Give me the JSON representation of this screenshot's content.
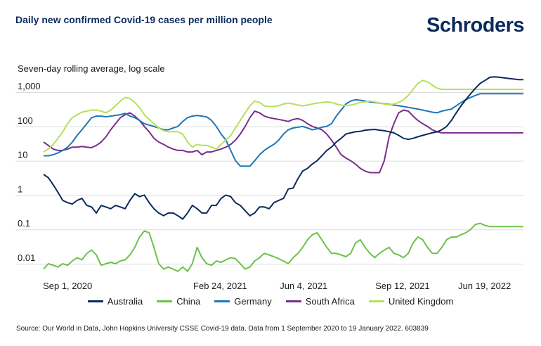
{
  "header": {
    "title": "Daily new confirmed Covid-19 cases per million people",
    "brand": "Schroders"
  },
  "footer": {
    "source": "Source: Our World in Data, John Hopkins University CSSE Covid-19 data. Data from 1 September 2020 to 19 January 2022. 603839"
  },
  "chart_data": {
    "type": "line",
    "title": "Daily new confirmed Covid-19 cases per million people",
    "subtitle": "Seven-day rolling average, log scale",
    "xlabel": "",
    "ylabel": "",
    "yscale": "log",
    "ylim": [
      0.005,
      2500
    ],
    "xlim": [
      0,
      100
    ],
    "grid": true,
    "legend_position": "bottom",
    "yticks": [
      {
        "value": 1000,
        "label": "1,000"
      },
      {
        "value": 100,
        "label": "100"
      },
      {
        "value": 10,
        "label": "10"
      },
      {
        "value": 1,
        "label": "1"
      },
      {
        "value": 0.1,
        "label": "0.1"
      },
      {
        "value": 0.01,
        "label": "0.01"
      }
    ],
    "xticks": [
      {
        "value": 5,
        "label": "Sep 1, 2020"
      },
      {
        "value": 36.8,
        "label": "Feb 24, 2021"
      },
      {
        "value": 54.2,
        "label": "Jun 4, 2021"
      },
      {
        "value": 74.8,
        "label": "Sep 12, 2021"
      },
      {
        "value": 91.9,
        "label": "Jun 19, 2022"
      }
    ],
    "series": [
      {
        "name": "Australia",
        "color": "#0b2a5c",
        "x": [
          0,
          1,
          2,
          3,
          4,
          5,
          6,
          7,
          8,
          9,
          10,
          11,
          12,
          13,
          14,
          15,
          16,
          17,
          18,
          19,
          20,
          21,
          22,
          23,
          24,
          25,
          26,
          27,
          28,
          29,
          30,
          31,
          32,
          33,
          34,
          35,
          36,
          37,
          38,
          39,
          40,
          41,
          42,
          43,
          44,
          45,
          46,
          47,
          48,
          49,
          50,
          51,
          52,
          53,
          54,
          55,
          56,
          57,
          58,
          59,
          60,
          61,
          62,
          63,
          64,
          65,
          66,
          67,
          68,
          69,
          70,
          71,
          72,
          73,
          74,
          75,
          76,
          77,
          78,
          79,
          80,
          81,
          82,
          83,
          84,
          85,
          86,
          87,
          88,
          89,
          90,
          91,
          92,
          93,
          94,
          95,
          96,
          97,
          98,
          99,
          100
        ],
        "values": [
          4,
          3.2,
          2,
          1.2,
          0.7,
          0.6,
          0.55,
          0.7,
          0.8,
          0.5,
          0.45,
          0.3,
          0.5,
          0.45,
          0.4,
          0.5,
          0.45,
          0.4,
          0.7,
          1.1,
          0.9,
          1.0,
          0.6,
          0.4,
          0.3,
          0.25,
          0.3,
          0.3,
          0.25,
          0.2,
          0.3,
          0.5,
          0.4,
          0.3,
          0.3,
          0.5,
          0.5,
          0.8,
          1.0,
          0.9,
          0.6,
          0.5,
          0.35,
          0.25,
          0.3,
          0.45,
          0.45,
          0.4,
          0.6,
          0.7,
          0.8,
          1.5,
          1.6,
          3,
          5,
          6,
          8,
          10,
          14,
          20,
          25,
          35,
          45,
          60,
          65,
          70,
          72,
          78,
          80,
          82,
          78,
          75,
          70,
          65,
          55,
          45,
          42,
          45,
          50,
          55,
          60,
          65,
          70,
          80,
          100,
          150,
          250,
          400,
          600,
          900,
          1300,
          1800,
          2200,
          2700,
          2800,
          2700,
          2600,
          2500,
          2400,
          2300,
          2300
        ]
      },
      {
        "name": "China",
        "color": "#6cc24a",
        "x": [
          0,
          1,
          2,
          3,
          4,
          5,
          6,
          7,
          8,
          9,
          10,
          11,
          12,
          13,
          14,
          15,
          16,
          17,
          18,
          19,
          20,
          21,
          22,
          23,
          24,
          25,
          26,
          27,
          28,
          29,
          30,
          31,
          32,
          33,
          34,
          35,
          36,
          37,
          38,
          39,
          40,
          41,
          42,
          43,
          44,
          45,
          46,
          47,
          48,
          49,
          50,
          51,
          52,
          53,
          54,
          55,
          56,
          57,
          58,
          59,
          60,
          61,
          62,
          63,
          64,
          65,
          66,
          67,
          68,
          69,
          70,
          71,
          72,
          73,
          74,
          75,
          76,
          77,
          78,
          79,
          80,
          81,
          82,
          83,
          84,
          85,
          86,
          87,
          88,
          89,
          90,
          91,
          92,
          93,
          94,
          95,
          96,
          97,
          98,
          99,
          100
        ],
        "values": [
          0.007,
          0.01,
          0.009,
          0.008,
          0.01,
          0.009,
          0.012,
          0.015,
          0.013,
          0.02,
          0.025,
          0.018,
          0.009,
          0.01,
          0.011,
          0.01,
          0.012,
          0.013,
          0.018,
          0.03,
          0.06,
          0.09,
          0.08,
          0.03,
          0.01,
          0.007,
          0.008,
          0.007,
          0.006,
          0.008,
          0.006,
          0.01,
          0.03,
          0.015,
          0.01,
          0.009,
          0.012,
          0.011,
          0.013,
          0.015,
          0.014,
          0.01,
          0.007,
          0.008,
          0.012,
          0.015,
          0.02,
          0.018,
          0.016,
          0.014,
          0.012,
          0.01,
          0.015,
          0.02,
          0.03,
          0.05,
          0.07,
          0.08,
          0.05,
          0.03,
          0.02,
          0.02,
          0.018,
          0.016,
          0.02,
          0.04,
          0.05,
          0.03,
          0.02,
          0.015,
          0.02,
          0.025,
          0.03,
          0.02,
          0.018,
          0.015,
          0.02,
          0.04,
          0.06,
          0.05,
          0.03,
          0.02,
          0.02,
          0.03,
          0.05,
          0.06,
          0.06,
          0.07,
          0.08,
          0.1,
          0.14,
          0.15,
          0.13,
          0.12,
          0.12,
          0.12,
          0.12,
          0.12,
          0.12,
          0.12,
          0.12
        ]
      },
      {
        "name": "Germany",
        "color": "#1f77b4",
        "x": [
          0,
          1,
          2,
          3,
          4,
          5,
          6,
          7,
          8,
          9,
          10,
          11,
          12,
          13,
          14,
          15,
          16,
          17,
          18,
          19,
          20,
          21,
          22,
          23,
          24,
          25,
          26,
          27,
          28,
          29,
          30,
          31,
          32,
          33,
          34,
          35,
          36,
          37,
          38,
          39,
          40,
          41,
          42,
          43,
          44,
          45,
          46,
          47,
          48,
          49,
          50,
          51,
          52,
          53,
          54,
          55,
          56,
          57,
          58,
          59,
          60,
          61,
          62,
          63,
          64,
          65,
          66,
          67,
          68,
          69,
          70,
          71,
          72,
          73,
          74,
          75,
          76,
          77,
          78,
          79,
          80,
          81,
          82,
          83,
          84,
          85,
          86,
          87,
          88,
          89,
          90,
          91,
          92,
          93,
          94,
          95,
          96,
          97,
          98,
          99,
          100
        ],
        "values": [
          14,
          14,
          15,
          17,
          20,
          25,
          35,
          55,
          80,
          120,
          180,
          200,
          200,
          190,
          200,
          210,
          220,
          240,
          200,
          180,
          150,
          120,
          110,
          100,
          90,
          80,
          80,
          90,
          100,
          140,
          180,
          200,
          210,
          200,
          190,
          150,
          100,
          60,
          40,
          20,
          10,
          7,
          7,
          7,
          10,
          15,
          20,
          25,
          30,
          40,
          60,
          80,
          90,
          95,
          100,
          90,
          80,
          85,
          95,
          100,
          120,
          200,
          300,
          450,
          550,
          600,
          580,
          550,
          520,
          500,
          480,
          460,
          440,
          420,
          400,
          380,
          360,
          340,
          320,
          300,
          280,
          260,
          250,
          280,
          300,
          320,
          400,
          500,
          600,
          700,
          800,
          900,
          900,
          900,
          900,
          900,
          900,
          900,
          900,
          900,
          900
        ]
      },
      {
        "name": "South Africa",
        "color": "#7b2d8e",
        "x": [
          0,
          1,
          2,
          3,
          4,
          5,
          6,
          7,
          8,
          9,
          10,
          11,
          12,
          13,
          14,
          15,
          16,
          17,
          18,
          19,
          20,
          21,
          22,
          23,
          24,
          25,
          26,
          27,
          28,
          29,
          30,
          31,
          32,
          33,
          34,
          35,
          36,
          37,
          38,
          39,
          40,
          41,
          42,
          43,
          44,
          45,
          46,
          47,
          48,
          49,
          50,
          51,
          52,
          53,
          54,
          55,
          56,
          57,
          58,
          59,
          60,
          61,
          62,
          63,
          64,
          65,
          66,
          67,
          68,
          69,
          70,
          71,
          72,
          73,
          74,
          75,
          76,
          77,
          78,
          79,
          80,
          81,
          82,
          83,
          84,
          85,
          86,
          87,
          88,
          89,
          90,
          91,
          92,
          93,
          94,
          95,
          96,
          97,
          98,
          99,
          100
        ],
        "values": [
          35,
          28,
          22,
          20,
          20,
          22,
          25,
          25,
          26,
          25,
          24,
          28,
          35,
          50,
          80,
          120,
          180,
          220,
          250,
          200,
          150,
          100,
          70,
          45,
          35,
          30,
          25,
          22,
          20,
          20,
          18,
          18,
          20,
          15,
          18,
          18,
          20,
          22,
          25,
          30,
          40,
          60,
          100,
          180,
          280,
          250,
          200,
          180,
          170,
          160,
          150,
          140,
          160,
          170,
          150,
          120,
          100,
          90,
          80,
          60,
          40,
          25,
          15,
          12,
          10,
          8,
          6,
          5,
          4.5,
          4.5,
          4.5,
          10,
          50,
          120,
          250,
          300,
          280,
          200,
          150,
          120,
          100,
          80,
          70,
          65,
          65,
          65,
          65,
          65,
          65,
          65,
          65,
          65,
          65,
          65,
          65,
          65,
          65,
          65,
          65,
          65,
          65
        ]
      },
      {
        "name": "United Kingdom",
        "color": "#b6e05b",
        "x": [
          0,
          1,
          2,
          3,
          4,
          5,
          6,
          7,
          8,
          9,
          10,
          11,
          12,
          13,
          14,
          15,
          16,
          17,
          18,
          19,
          20,
          21,
          22,
          23,
          24,
          25,
          26,
          27,
          28,
          29,
          30,
          31,
          32,
          33,
          34,
          35,
          36,
          37,
          38,
          39,
          40,
          41,
          42,
          43,
          44,
          45,
          46,
          47,
          48,
          49,
          50,
          51,
          52,
          53,
          54,
          55,
          56,
          57,
          58,
          59,
          60,
          61,
          62,
          63,
          64,
          65,
          66,
          67,
          68,
          69,
          70,
          71,
          72,
          73,
          74,
          75,
          76,
          77,
          78,
          79,
          80,
          81,
          82,
          83,
          84,
          85,
          86,
          87,
          88,
          89,
          90,
          91,
          92,
          93,
          94,
          95,
          96,
          97,
          98,
          99,
          100
        ],
        "values": [
          18,
          22,
          30,
          45,
          70,
          120,
          180,
          220,
          260,
          280,
          300,
          300,
          280,
          250,
          300,
          400,
          550,
          700,
          650,
          500,
          350,
          220,
          160,
          120,
          90,
          75,
          70,
          70,
          70,
          60,
          35,
          25,
          30,
          28,
          28,
          25,
          22,
          30,
          40,
          55,
          90,
          150,
          250,
          400,
          550,
          500,
          400,
          380,
          380,
          400,
          450,
          480,
          450,
          420,
          400,
          420,
          450,
          480,
          500,
          520,
          500,
          450,
          420,
          400,
          420,
          450,
          500,
          520,
          550,
          520,
          480,
          450,
          430,
          450,
          500,
          600,
          800,
          1200,
          1800,
          2200,
          2000,
          1600,
          1300,
          1200,
          1200,
          1200,
          1200,
          1200,
          1200,
          1200,
          1200,
          1200,
          1200,
          1200,
          1200,
          1200,
          1200,
          1200,
          1200,
          1200,
          1200
        ]
      }
    ]
  }
}
